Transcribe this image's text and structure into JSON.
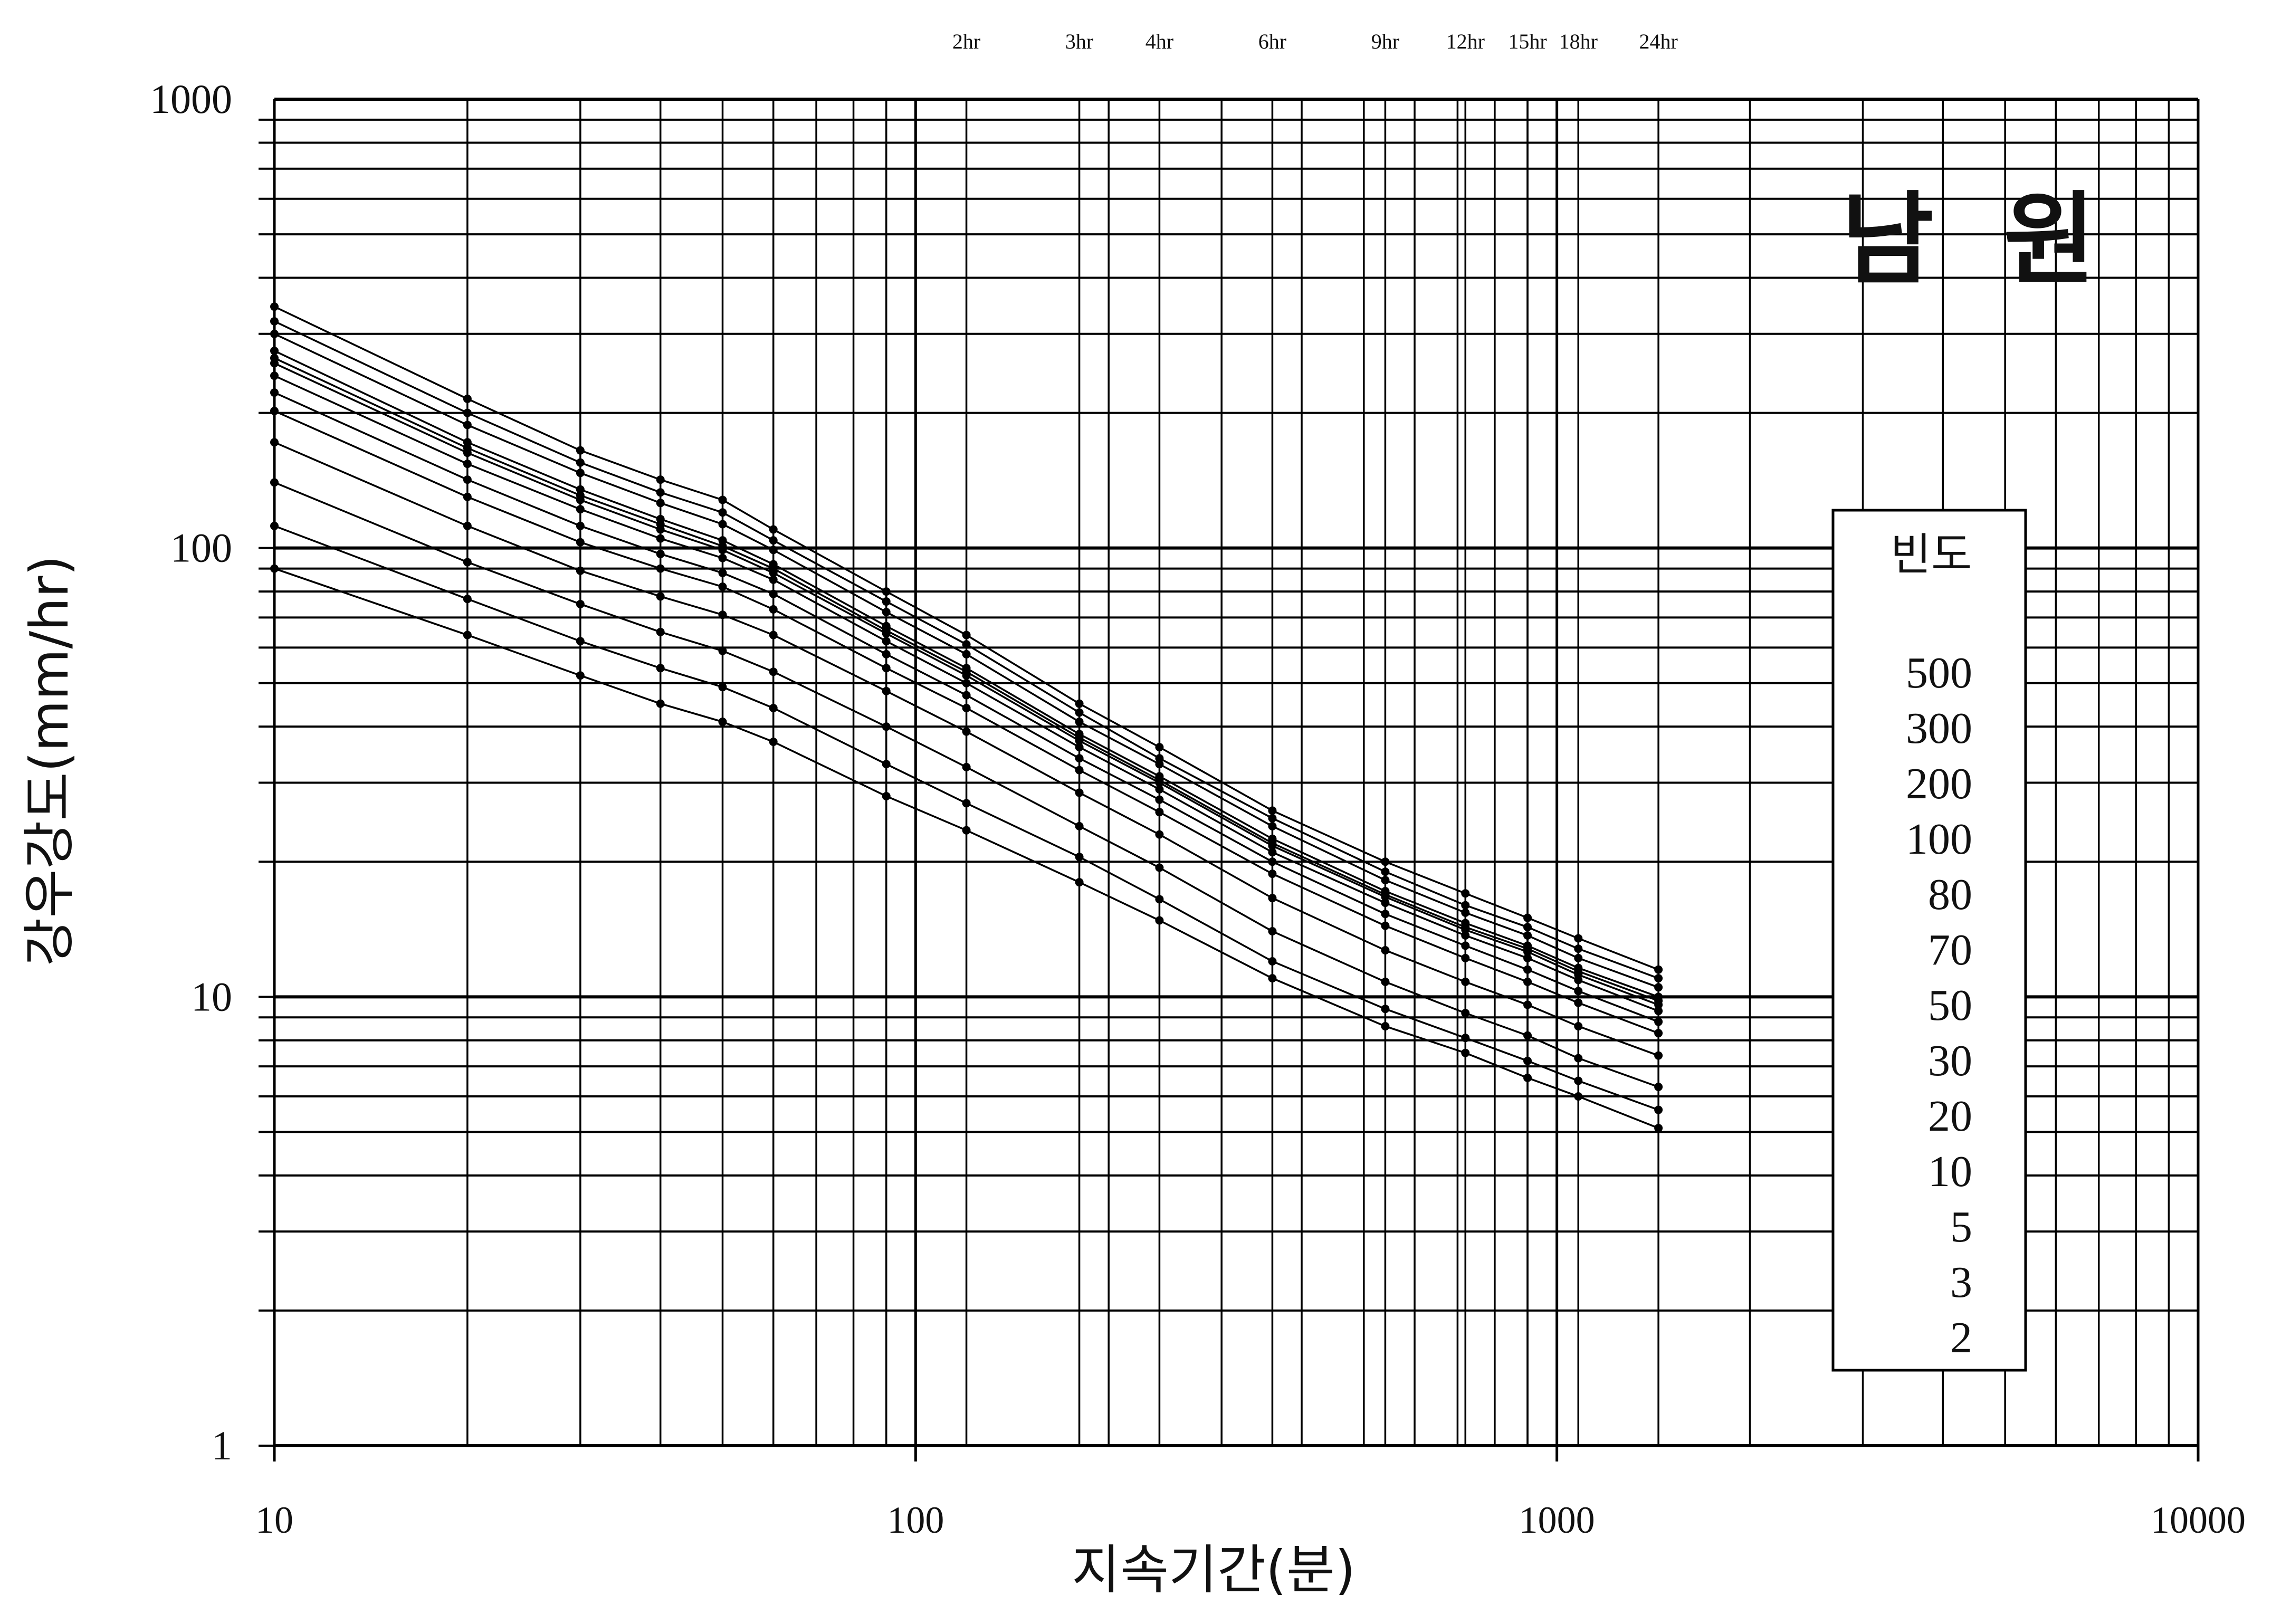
{
  "chart_data": {
    "type": "line",
    "title": "남  원",
    "xlabel": "지속기간(분)",
    "ylabel": "강우강도(mm/hr)",
    "x_scale": "log",
    "y_scale": "log",
    "xlim": [
      10,
      10000
    ],
    "ylim": [
      1,
      1000
    ],
    "grid": true,
    "x_tick_labels": [
      "10",
      "100",
      "1000",
      "10000"
    ],
    "y_tick_labels": [
      "1",
      "10",
      "100",
      "1000"
    ],
    "duration_labels": [
      {
        "label": "2hr",
        "x": 120
      },
      {
        "label": "3hr",
        "x": 180
      },
      {
        "label": "4hr",
        "x": 240
      },
      {
        "label": "6hr",
        "x": 360
      },
      {
        "label": "9hr",
        "x": 540
      },
      {
        "label": "12hr",
        "x": 720
      },
      {
        "label": "15hr",
        "x": 900
      },
      {
        "label": "18hr",
        "x": 1080
      },
      {
        "label": "24hr",
        "x": 1440
      }
    ],
    "legend": {
      "title": "빈도",
      "placement": "right",
      "entries": [
        "500",
        "300",
        "200",
        "100",
        "80",
        "70",
        "50",
        "30",
        "20",
        "10",
        "5",
        "3",
        "2"
      ]
    },
    "x": [
      10,
      20,
      30,
      40,
      50,
      60,
      90,
      120,
      180,
      240,
      360,
      540,
      720,
      900,
      1080,
      1440
    ],
    "series": [
      {
        "name": "500",
        "values": [
          345,
          215,
          165,
          142,
          128,
          110,
          80,
          64,
          45,
          36,
          26,
          20,
          17,
          15,
          13.5,
          11.5
        ]
      },
      {
        "name": "300",
        "values": [
          320,
          200,
          155,
          133,
          120,
          104,
          76,
          61,
          43,
          34,
          25,
          19,
          16,
          14.3,
          12.8,
          11
        ]
      },
      {
        "name": "200",
        "values": [
          300,
          188,
          147,
          126,
          113,
          99,
          72,
          58,
          41,
          33,
          24,
          18.2,
          15.4,
          13.7,
          12.2,
          10.5
        ]
      },
      {
        "name": "100",
        "values": [
          275,
          172,
          135,
          116,
          104,
          92,
          67,
          54,
          38.5,
          31,
          22.5,
          17.2,
          14.6,
          13,
          11.6,
          10
        ]
      },
      {
        "name": "80",
        "values": [
          265,
          167,
          131,
          113,
          101,
          90,
          65.5,
          53,
          37.8,
          30.4,
          22,
          16.9,
          14.3,
          12.8,
          11.4,
          9.8
        ]
      },
      {
        "name": "70",
        "values": [
          258,
          163,
          128,
          110,
          99,
          88,
          64.5,
          52,
          37.2,
          30,
          21.7,
          16.7,
          14.1,
          12.6,
          11.2,
          9.6
        ]
      },
      {
        "name": "50",
        "values": [
          242,
          154,
          122,
          105,
          95,
          85,
          62,
          50,
          36,
          29,
          21,
          16.2,
          13.7,
          12.2,
          10.9,
          9.3
        ]
      },
      {
        "name": "30",
        "values": [
          222,
          142,
          112,
          97,
          88,
          79,
          58,
          47,
          34,
          27.5,
          20,
          15.3,
          13,
          11.5,
          10.3,
          8.8
        ]
      },
      {
        "name": "20",
        "values": [
          202,
          130,
          103,
          90,
          82,
          73,
          54,
          44,
          32,
          25.8,
          18.8,
          14.4,
          12.2,
          10.8,
          9.7,
          8.3
        ]
      },
      {
        "name": "10",
        "values": [
          172,
          112,
          89,
          78,
          71,
          64,
          48,
          39,
          28.5,
          23,
          16.6,
          12.7,
          10.8,
          9.6,
          8.6,
          7.4
        ]
      },
      {
        "name": "5",
        "values": [
          140,
          93,
          75,
          65,
          59,
          53,
          40,
          32.5,
          24,
          19.4,
          14,
          10.8,
          9.2,
          8.2,
          7.3,
          6.3
        ]
      },
      {
        "name": "3",
        "values": [
          112,
          77,
          62,
          54,
          49,
          44,
          33,
          27,
          20.5,
          16.5,
          12,
          9.4,
          8.1,
          7.2,
          6.5,
          5.6
        ]
      },
      {
        "name": "2",
        "values": [
          90,
          64,
          52,
          45,
          41,
          37,
          28,
          23.5,
          18,
          14.8,
          11,
          8.6,
          7.5,
          6.6,
          6,
          5.1
        ]
      }
    ]
  }
}
